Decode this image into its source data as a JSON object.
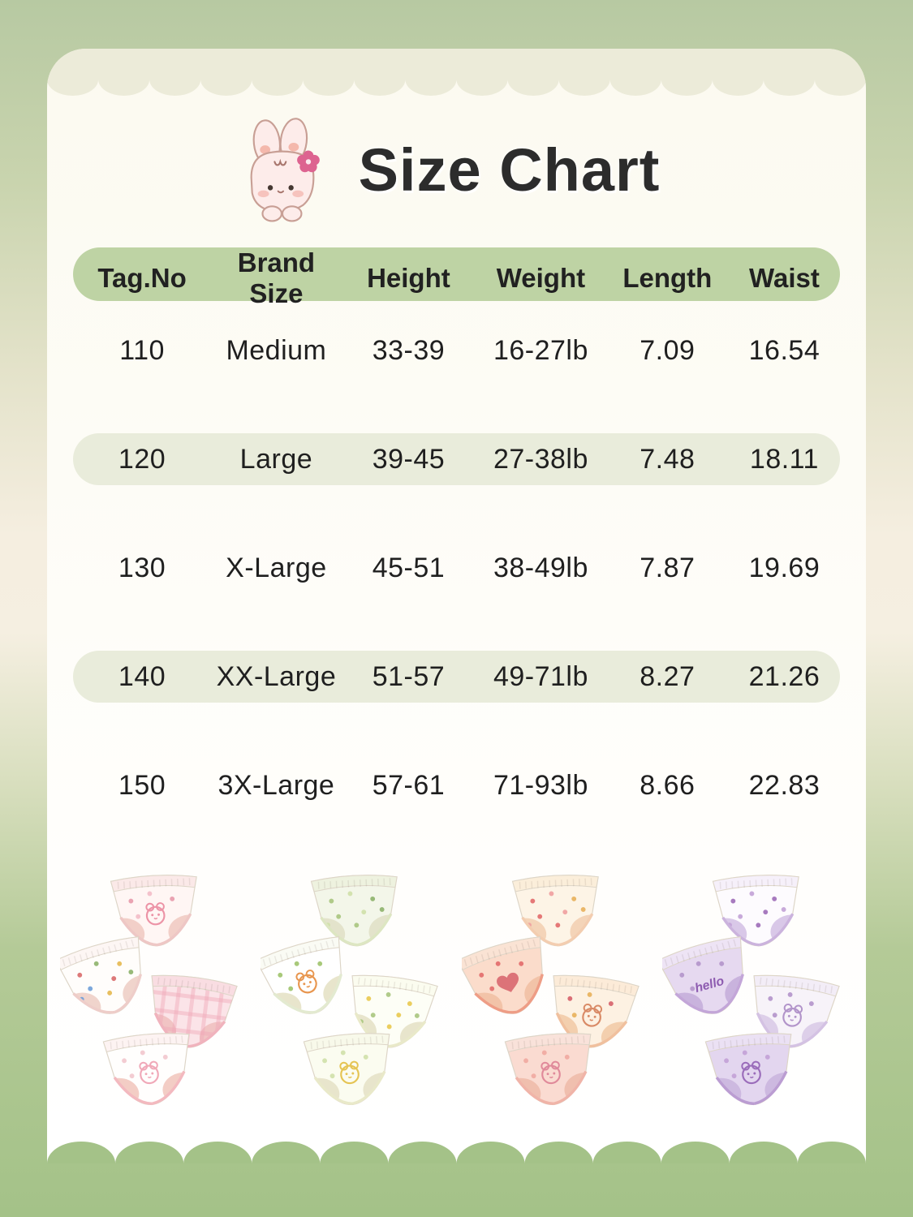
{
  "title": {
    "text": "Size Chart",
    "icon": "bunny-with-flower"
  },
  "size_table": {
    "columns": [
      "Tag.No",
      "Brand Size",
      "Height",
      "Weight",
      "Length",
      "Waist"
    ],
    "rows": [
      {
        "cells": [
          "110",
          "Medium",
          "33-39",
          "16-27lb",
          "7.09",
          "16.54"
        ],
        "highlighted": false
      },
      {
        "cells": [
          "120",
          "Large",
          "39-45",
          "27-38lb",
          "7.48",
          "18.11"
        ],
        "highlighted": true
      },
      {
        "cells": [
          "130",
          "X-Large",
          "45-51",
          "38-49lb",
          "7.87",
          "19.69"
        ],
        "highlighted": false
      },
      {
        "cells": [
          "140",
          "XX-Large",
          "51-57",
          "49-71lb",
          "8.27",
          "21.26"
        ],
        "highlighted": true
      },
      {
        "cells": [
          "150",
          "3X-Large",
          "57-61",
          "71-93lb",
          "8.66",
          "22.83"
        ],
        "highlighted": false
      }
    ]
  },
  "products": {
    "sets": [
      {
        "name": "pink-white-set",
        "briefs": [
          {
            "body": "#fff6f4",
            "band": "#fbe9e8",
            "shadow": "#f2cfc8",
            "trim": "#eec7c5",
            "motif": "character",
            "accent": "#ec93a6",
            "dots": [
              "#e89aab",
              "#f3bcc8"
            ]
          },
          {
            "body": "#fffdfb",
            "band": "#fdf6f4",
            "shadow": "#f0d4cc",
            "trim": "#eecdc9",
            "motif": "dots",
            "accent": "#d96a6a",
            "dots": [
              "#d96a6a",
              "#8db36a",
              "#e6b84f",
              "#6f9fd8"
            ]
          },
          {
            "body": "#fbe4e8",
            "band": "#f9dde2",
            "shadow": "#f1c4c4",
            "trim": "#f0b3bd",
            "motif": "gingham",
            "accent": "#f0a8b8",
            "dots": [
              "#f3bfca"
            ]
          },
          {
            "body": "#fffefd",
            "band": "#fdf3f2",
            "shadow": "#f3cdc5",
            "trim": "#f3b9bf",
            "motif": "character",
            "accent": "#f0a8b8",
            "dots": [
              "#f2c6cd"
            ]
          }
        ]
      },
      {
        "name": "green-white-set",
        "briefs": [
          {
            "body": "#f3f6e9",
            "band": "#eef2df",
            "shadow": "#e3e3cb",
            "trim": "#dde6c2",
            "motif": "dots",
            "accent": "#a8c57e",
            "dots": [
              "#a8c57e",
              "#cfe0a8",
              "#8db36a"
            ]
          },
          {
            "body": "#ffffff",
            "band": "#fafbf4",
            "shadow": "#e8e5cc",
            "trim": "#e3ead0",
            "motif": "character",
            "accent": "#e8964f",
            "dots": [
              "#9fc36b"
            ]
          },
          {
            "body": "#fdfef6",
            "band": "#fbfcef",
            "shadow": "#e8e5cc",
            "trim": "#e9e9c9",
            "motif": "dots",
            "accent": "#e9c94f",
            "dots": [
              "#e9c94f",
              "#a8c57e"
            ]
          },
          {
            "body": "#fbfcf0",
            "band": "#f8f9ea",
            "shadow": "#e8e5cc",
            "trim": "#e9e9c9",
            "motif": "character",
            "accent": "#e5c453",
            "dots": [
              "#cfe0a8"
            ]
          }
        ]
      },
      {
        "name": "peach-orange-set",
        "briefs": [
          {
            "body": "#fdf4e6",
            "band": "#fbeeda",
            "shadow": "#f4d4b8",
            "trim": "#f3cdb0",
            "motif": "dots",
            "accent": "#e26a6a",
            "dots": [
              "#e26a6a",
              "#ef9f9f",
              "#e8b05a"
            ]
          },
          {
            "body": "#fbdccb",
            "band": "#fae3d4",
            "shadow": "#f2c3a8",
            "trim": "#ee9d86",
            "motif": "heart",
            "accent": "#d6606a",
            "dots": [
              "#e26a6a"
            ]
          },
          {
            "body": "#fdf1e2",
            "band": "#fcebd8",
            "shadow": "#f3cfae",
            "trim": "#f0c09e",
            "motif": "character",
            "accent": "#d98a66",
            "dots": [
              "#d6606a",
              "#e8b05a"
            ]
          },
          {
            "body": "#fadbd1",
            "band": "#f9e2da",
            "shadow": "#f0bfae",
            "trim": "#f0b4a8",
            "motif": "character",
            "accent": "#e08a9a",
            "dots": [
              "#f0a8a0"
            ]
          }
        ]
      },
      {
        "name": "purple-lilac-set",
        "briefs": [
          {
            "body": "#fdfbfe",
            "band": "#f6f0fa",
            "shadow": "#d9c8e8",
            "trim": "#cbb3dd",
            "motif": "dots",
            "accent": "#9d6cb8",
            "dots": [
              "#9d6cb8",
              "#c2a1d6"
            ]
          },
          {
            "body": "#e6d9f0",
            "band": "#eee4f5",
            "shadow": "#c9b3dd",
            "trim": "#c3a6d8",
            "motif": "text",
            "motif_text": "hello",
            "accent": "#8d5bb0",
            "dots": [
              "#b294ca"
            ]
          },
          {
            "body": "#f7f3f9",
            "band": "#f3edf7",
            "shadow": "#ddcfe9",
            "trim": "#d4c2e3",
            "motif": "character",
            "accent": "#b294ca",
            "dots": [
              "#b294ca"
            ]
          },
          {
            "body": "#e3d6ef",
            "band": "#ebe1f4",
            "shadow": "#cdb9e0",
            "trim": "#bb9dd2",
            "motif": "character",
            "accent": "#9a6cba",
            "dots": [
              "#c2a1d6"
            ]
          }
        ]
      }
    ]
  },
  "colors": {
    "background_top": "#b7c9a2",
    "background_middle": "#f5eee0",
    "background_bottom": "#a4c288",
    "card": "#fdfcf5",
    "top_band": "#ecebd9",
    "header_pill": "#bed3a4",
    "row_pill": "#e9ecdb",
    "title_text": "#2c2c2c",
    "text": "#1f1f1f",
    "bunny_pink": "#fdecea",
    "flower_pink": "#dd6390"
  }
}
